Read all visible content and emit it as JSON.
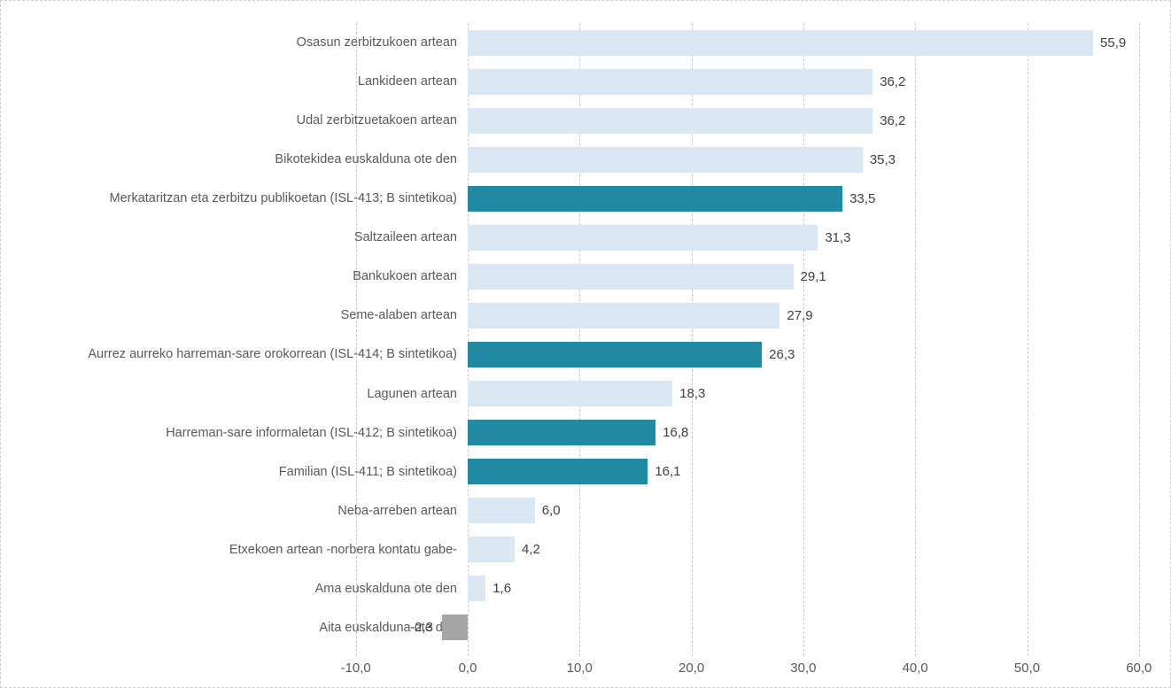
{
  "chart_data": {
    "type": "bar",
    "orientation": "horizontal",
    "title": "",
    "legend": "none",
    "grid": "vertical-dashed",
    "categories": [
      "Osasun zerbitzukoen artean",
      "Lankideen artean",
      "Udal zerbitzuetakoen artean",
      "Bikotekidea euskalduna ote den",
      "Merkataritzan eta zerbitzu publikoetan (ISL-413; B sintetikoa)",
      "Saltzaileen artean",
      "Bankukoen artean",
      "Seme-alaben artean",
      "Aurrez aurreko harreman-sare orokorrean (ISL-414; B sintetikoa)",
      "Lagunen artean",
      "Harreman-sare informaletan (ISL-412; B sintetikoa)",
      "Familian (ISL-411; B sintetikoa)",
      "Neba-arreben artean",
      "Etxekoen artean -norbera kontatu gabe-",
      "Ama euskalduna ote den",
      "Aita euskalduna ote den"
    ],
    "values": [
      55.9,
      36.2,
      36.2,
      35.3,
      33.5,
      31.3,
      29.1,
      27.9,
      26.3,
      18.3,
      16.8,
      16.1,
      6.0,
      4.2,
      1.6,
      -2.3
    ],
    "value_labels": [
      "55,9",
      "36,2",
      "36,2",
      "35,3",
      "33,5",
      "31,3",
      "29,1",
      "27,9",
      "26,3",
      "18,3",
      "16,8",
      "16,1",
      "6,0",
      "4,2",
      "1,6",
      "-2,3"
    ],
    "bar_roles": [
      "normal",
      "normal",
      "normal",
      "normal",
      "highlight",
      "normal",
      "normal",
      "normal",
      "highlight",
      "normal",
      "highlight",
      "highlight",
      "normal",
      "normal",
      "normal",
      "negative"
    ],
    "colors": {
      "normal": "#dbe7f3",
      "highlight": "#2189a1",
      "negative": "#a6a6a6",
      "gridline": "#c9c9c9",
      "category_text": "#595959",
      "value_text": "#404040"
    },
    "x_axis": {
      "min": -10,
      "max": 60,
      "tick_step": 10,
      "tick_values": [
        -10,
        0,
        10,
        20,
        30,
        40,
        50,
        60
      ],
      "tick_labels": [
        "-10,0",
        "0,0",
        "10,0",
        "20,0",
        "30,0",
        "40,0",
        "50,0",
        "60,0"
      ]
    }
  }
}
